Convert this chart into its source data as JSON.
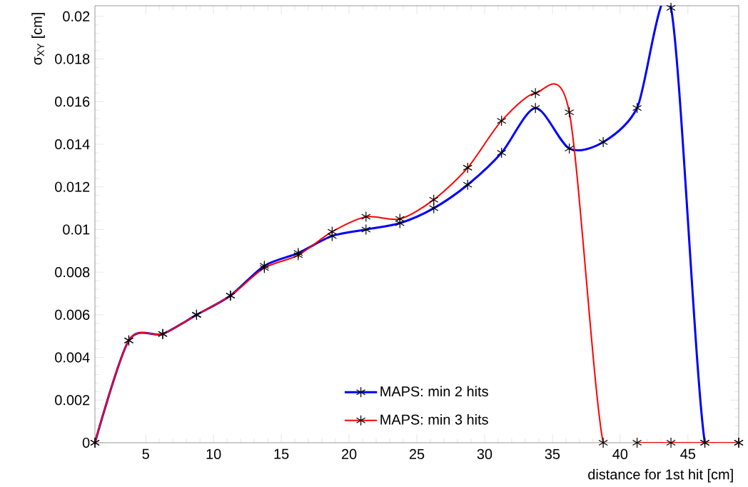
{
  "chart_data": {
    "type": "line",
    "xlabel": "distance for 1st hit [cm]",
    "ylabel": "σ$_{XY}$ [cm]",
    "x": [
      1.25,
      3.75,
      6.25,
      8.75,
      11.25,
      13.75,
      16.25,
      18.75,
      21.25,
      23.75,
      26.25,
      28.75,
      31.25,
      33.75,
      36.25,
      38.75,
      41.25,
      43.75,
      46.25,
      48.75
    ],
    "series": [
      {
        "name": "MAPS: min 2 hits",
        "color": "#0000ff",
        "values": [
          0,
          0.0048,
          0.0051,
          0.006,
          0.0069,
          0.0083,
          0.0089,
          0.0097,
          0.01,
          0.0103,
          0.011,
          0.0121,
          0.0136,
          0.0157,
          0.0138,
          0.0141,
          0.0157,
          0.0204,
          0,
          0
        ]
      },
      {
        "name": "MAPS: min 3 hits",
        "color": "#ff0000",
        "values": [
          0,
          0.0048,
          0.0051,
          0.006,
          0.0069,
          0.0082,
          0.0088,
          0.0099,
          0.0106,
          0.0105,
          0.0114,
          0.0129,
          0.0151,
          0.0164,
          0.0155,
          0,
          0,
          0,
          0,
          0
        ]
      }
    ],
    "xlim": [
      1.25,
      48.75
    ],
    "ylim": [
      0,
      0.0205
    ],
    "xticks": [
      5,
      10,
      15,
      20,
      25,
      30,
      35,
      40,
      45
    ],
    "yticks": [
      0,
      0.002,
      0.004,
      0.006,
      0.008,
      0.01,
      0.012,
      0.014,
      0.016,
      0.018,
      0.02
    ],
    "marker": "cross",
    "line_style": "solid",
    "legend": "bottom",
    "grid": false
  }
}
